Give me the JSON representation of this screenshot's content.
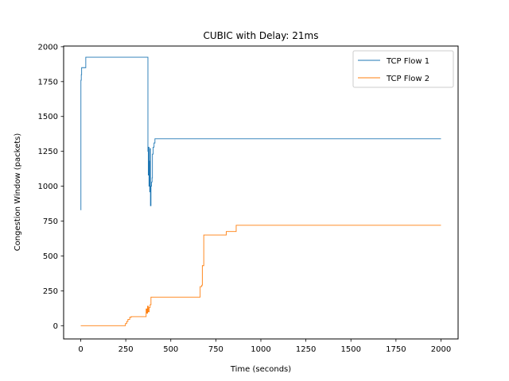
{
  "chart_data": {
    "type": "line",
    "title": "CUBIC with Delay: 21ms",
    "xlabel": "Time (seconds)",
    "ylabel": "Congestion Window (packets)",
    "xlim": [
      -95,
      2095
    ],
    "ylim": [
      -95,
      2005
    ],
    "xticks": [
      0,
      250,
      500,
      750,
      1000,
      1250,
      1500,
      1750,
      2000
    ],
    "yticks": [
      0,
      250,
      500,
      750,
      1000,
      1250,
      1500,
      1750,
      2000
    ],
    "grid": false,
    "legend_position": "top-right",
    "series": [
      {
        "name": "TCP Flow 1",
        "color": "#1f77b4",
        "step": true,
        "points": [
          [
            0,
            830
          ],
          [
            1,
            1760
          ],
          [
            3,
            1800
          ],
          [
            5,
            1850
          ],
          [
            25,
            1850
          ],
          [
            28,
            1925
          ],
          [
            370,
            1925
          ],
          [
            373,
            1250
          ],
          [
            375,
            1080
          ],
          [
            377,
            1280
          ],
          [
            379,
            1000
          ],
          [
            381,
            1180
          ],
          [
            383,
            960
          ],
          [
            385,
            1270
          ],
          [
            387,
            860
          ],
          [
            390,
            1000
          ],
          [
            393,
            1030
          ],
          [
            396,
            1060
          ],
          [
            398,
            1230
          ],
          [
            402,
            1280
          ],
          [
            407,
            1310
          ],
          [
            412,
            1340
          ],
          [
            2000,
            1340
          ]
        ]
      },
      {
        "name": "TCP Flow 2",
        "color": "#ff7f0e",
        "step": true,
        "points": [
          [
            0,
            0
          ],
          [
            245,
            0
          ],
          [
            248,
            15
          ],
          [
            255,
            30
          ],
          [
            262,
            45
          ],
          [
            272,
            60
          ],
          [
            280,
            65
          ],
          [
            360,
            65
          ],
          [
            363,
            120
          ],
          [
            367,
            90
          ],
          [
            371,
            140
          ],
          [
            375,
            100
          ],
          [
            380,
            130
          ],
          [
            385,
            150
          ],
          [
            390,
            205
          ],
          [
            660,
            205
          ],
          [
            663,
            280
          ],
          [
            672,
            290
          ],
          [
            675,
            430
          ],
          [
            680,
            430
          ],
          [
            683,
            650
          ],
          [
            805,
            650
          ],
          [
            808,
            675
          ],
          [
            860,
            675
          ],
          [
            863,
            720
          ],
          [
            2000,
            720
          ]
        ]
      }
    ]
  }
}
